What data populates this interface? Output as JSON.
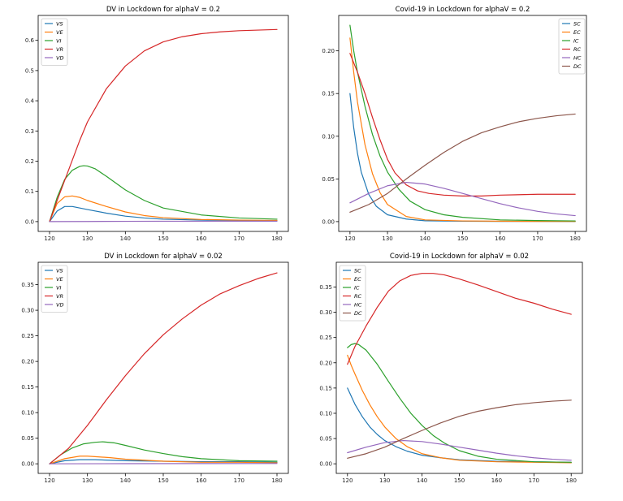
{
  "chart_data": [
    {
      "type": "line",
      "title": "DV in Lockdown for alphaV = 0.2",
      "xlabel": "",
      "ylabel": "",
      "xlim": [
        120,
        180
      ],
      "ylim": [
        0,
        0.65
      ],
      "xticks": [
        120,
        130,
        140,
        150,
        160,
        170,
        180
      ],
      "yticks": [
        0.0,
        0.1,
        0.2,
        0.3,
        0.4,
        0.5,
        0.6
      ],
      "yticklabels": [
        "0.0",
        "0.1",
        "0.2",
        "0.3",
        "0.4",
        "0.5",
        "0.6"
      ],
      "legend_position": "top-left",
      "series": [
        {
          "name": "VS",
          "color": "#1f77b4",
          "x": [
            120,
            122,
            124,
            126,
            128,
            130,
            135,
            140,
            145,
            150,
            160,
            170,
            180
          ],
          "values": [
            0.0,
            0.035,
            0.05,
            0.05,
            0.045,
            0.04,
            0.028,
            0.018,
            0.012,
            0.008,
            0.005,
            0.004,
            0.003
          ]
        },
        {
          "name": "VE",
          "color": "#ff7f0e",
          "x": [
            120,
            122,
            124,
            126,
            128,
            130,
            135,
            140,
            145,
            150,
            160,
            170,
            180
          ],
          "values": [
            0.0,
            0.06,
            0.082,
            0.085,
            0.08,
            0.07,
            0.05,
            0.032,
            0.02,
            0.013,
            0.007,
            0.005,
            0.004
          ]
        },
        {
          "name": "VI",
          "color": "#2ca02c",
          "x": [
            120,
            122,
            124,
            126,
            128,
            129,
            130,
            132,
            135,
            140,
            145,
            150,
            160,
            170,
            180
          ],
          "values": [
            0.0,
            0.08,
            0.14,
            0.17,
            0.183,
            0.185,
            0.184,
            0.175,
            0.15,
            0.105,
            0.07,
            0.045,
            0.022,
            0.012,
            0.008
          ]
        },
        {
          "name": "VR",
          "color": "#d62728",
          "x": [
            120,
            122,
            125,
            128,
            130,
            135,
            140,
            145,
            150,
            155,
            160,
            165,
            170,
            175,
            180
          ],
          "values": [
            0.0,
            0.07,
            0.17,
            0.27,
            0.33,
            0.44,
            0.515,
            0.565,
            0.595,
            0.612,
            0.622,
            0.628,
            0.632,
            0.634,
            0.636
          ]
        },
        {
          "name": "VD",
          "color": "#9467bd",
          "x": [
            120,
            130,
            140,
            150,
            160,
            170,
            180
          ],
          "values": [
            0.0,
            0.0005,
            0.001,
            0.0012,
            0.0013,
            0.0014,
            0.0014
          ]
        }
      ]
    },
    {
      "type": "line",
      "title": "Covid-19 in Lockdown for alphaV = 0.2",
      "xlabel": "",
      "ylabel": "",
      "xlim": [
        120,
        180
      ],
      "ylim": [
        0,
        0.23
      ],
      "xticks": [
        120,
        130,
        140,
        150,
        160,
        170,
        180
      ],
      "yticks": [
        0.0,
        0.05,
        0.1,
        0.15,
        0.2
      ],
      "yticklabels": [
        "0.00",
        "0.05",
        "0.10",
        "0.15",
        "0.20"
      ],
      "legend_position": "top-right",
      "series": [
        {
          "name": "SC",
          "color": "#1f77b4",
          "x": [
            120,
            121,
            122,
            123,
            125,
            127,
            130,
            135,
            140,
            150,
            160,
            170,
            180
          ],
          "values": [
            0.15,
            0.11,
            0.08,
            0.058,
            0.032,
            0.018,
            0.008,
            0.003,
            0.001,
            0.0005,
            0.0003,
            0.0002,
            0.0001
          ]
        },
        {
          "name": "EC",
          "color": "#ff7f0e",
          "x": [
            120,
            121,
            122,
            124,
            126,
            128,
            130,
            135,
            140,
            150,
            160,
            170,
            180
          ],
          "values": [
            0.215,
            0.175,
            0.14,
            0.09,
            0.056,
            0.034,
            0.02,
            0.006,
            0.002,
            0.0008,
            0.0005,
            0.0003,
            0.0002
          ]
        },
        {
          "name": "IC",
          "color": "#2ca02c",
          "x": [
            120,
            121,
            122,
            124,
            126,
            128,
            130,
            133,
            136,
            140,
            145,
            150,
            160,
            170,
            180
          ],
          "values": [
            0.23,
            0.2,
            0.175,
            0.135,
            0.102,
            0.077,
            0.058,
            0.038,
            0.024,
            0.014,
            0.008,
            0.005,
            0.002,
            0.0012,
            0.0008
          ]
        },
        {
          "name": "RC",
          "color": "#d62728",
          "x": [
            120,
            122,
            124,
            126,
            128,
            130,
            132,
            135,
            138,
            141,
            145,
            150,
            155,
            160,
            170,
            180
          ],
          "values": [
            0.197,
            0.175,
            0.15,
            0.122,
            0.096,
            0.073,
            0.057,
            0.043,
            0.036,
            0.033,
            0.031,
            0.03,
            0.03,
            0.031,
            0.032,
            0.032
          ]
        },
        {
          "name": "HC",
          "color": "#9467bd",
          "x": [
            120,
            125,
            130,
            135,
            140,
            145,
            150,
            155,
            160,
            165,
            170,
            175,
            180
          ],
          "values": [
            0.022,
            0.033,
            0.042,
            0.046,
            0.044,
            0.039,
            0.033,
            0.027,
            0.021,
            0.016,
            0.012,
            0.009,
            0.007
          ]
        },
        {
          "name": "DC",
          "color": "#8c564b",
          "x": [
            120,
            125,
            130,
            135,
            140,
            145,
            150,
            155,
            160,
            165,
            170,
            175,
            180
          ],
          "values": [
            0.011,
            0.02,
            0.033,
            0.05,
            0.066,
            0.081,
            0.094,
            0.104,
            0.111,
            0.117,
            0.121,
            0.124,
            0.126
          ]
        }
      ]
    },
    {
      "type": "line",
      "title": "DV in Lockdown for alphaV = 0.02",
      "xlabel": "",
      "ylabel": "",
      "xlim": [
        120,
        180
      ],
      "ylim": [
        0,
        0.375
      ],
      "xticks": [
        120,
        130,
        140,
        150,
        160,
        170,
        180
      ],
      "yticks": [
        0.0,
        0.05,
        0.1,
        0.15,
        0.2,
        0.25,
        0.3,
        0.35
      ],
      "yticklabels": [
        "0.00",
        "0.05",
        "0.10",
        "0.15",
        "0.20",
        "0.25",
        "0.30",
        "0.35"
      ],
      "legend_position": "top-left",
      "series": [
        {
          "name": "VS",
          "color": "#1f77b4",
          "x": [
            120,
            124,
            128,
            132,
            136,
            140,
            150,
            160,
            170,
            180
          ],
          "values": [
            0.0,
            0.006,
            0.008,
            0.008,
            0.007,
            0.006,
            0.005,
            0.004,
            0.004,
            0.003
          ]
        },
        {
          "name": "VE",
          "color": "#ff7f0e",
          "x": [
            120,
            124,
            128,
            130,
            132,
            136,
            140,
            145,
            150,
            160,
            170,
            180
          ],
          "values": [
            0.0,
            0.01,
            0.015,
            0.015,
            0.014,
            0.012,
            0.009,
            0.007,
            0.005,
            0.003,
            0.003,
            0.002
          ]
        },
        {
          "name": "VI",
          "color": "#2ca02c",
          "x": [
            120,
            123,
            126,
            129,
            132,
            134,
            137,
            140,
            145,
            150,
            155,
            160,
            170,
            180
          ],
          "values": [
            0.0,
            0.018,
            0.031,
            0.039,
            0.042,
            0.043,
            0.041,
            0.036,
            0.027,
            0.02,
            0.014,
            0.01,
            0.006,
            0.005
          ]
        },
        {
          "name": "VR",
          "color": "#d62728",
          "x": [
            120,
            125,
            130,
            135,
            140,
            145,
            150,
            155,
            160,
            165,
            170,
            175,
            180
          ],
          "values": [
            0.0,
            0.03,
            0.075,
            0.125,
            0.172,
            0.215,
            0.252,
            0.283,
            0.31,
            0.332,
            0.348,
            0.362,
            0.373
          ]
        },
        {
          "name": "VD",
          "color": "#9467bd",
          "x": [
            120,
            140,
            160,
            180
          ],
          "values": [
            0.0,
            0.0003,
            0.0005,
            0.0006
          ]
        }
      ]
    },
    {
      "type": "line",
      "title": "Covid-19 in Lockdown for alphaV = 0.02",
      "xlabel": "",
      "ylabel": "",
      "xlim": [
        120,
        180
      ],
      "ylim": [
        0,
        0.38
      ],
      "xticks": [
        120,
        130,
        140,
        150,
        160,
        170,
        180
      ],
      "yticks": [
        0.0,
        0.05,
        0.1,
        0.15,
        0.2,
        0.25,
        0.3,
        0.35
      ],
      "yticklabels": [
        "0.00",
        "0.05",
        "0.10",
        "0.15",
        "0.20",
        "0.25",
        "0.30",
        "0.35"
      ],
      "legend_position": "top-left",
      "series": [
        {
          "name": "SC",
          "color": "#1f77b4",
          "x": [
            120,
            122,
            124,
            126,
            128,
            130,
            133,
            136,
            140,
            145,
            150,
            160,
            170,
            180
          ],
          "values": [
            0.15,
            0.118,
            0.093,
            0.073,
            0.058,
            0.046,
            0.034,
            0.025,
            0.017,
            0.012,
            0.008,
            0.005,
            0.004,
            0.003
          ]
        },
        {
          "name": "EC",
          "color": "#ff7f0e",
          "x": [
            120,
            121,
            122,
            124,
            126,
            128,
            130,
            133,
            136,
            140,
            145,
            150,
            160,
            170,
            180
          ],
          "values": [
            0.215,
            0.195,
            0.178,
            0.145,
            0.117,
            0.093,
            0.073,
            0.05,
            0.034,
            0.02,
            0.012,
            0.007,
            0.004,
            0.003,
            0.002
          ]
        },
        {
          "name": "IC",
          "color": "#2ca02c",
          "x": [
            120,
            121,
            122,
            123,
            125,
            128,
            131,
            134,
            137,
            140,
            143,
            146,
            150,
            155,
            160,
            170,
            180
          ],
          "values": [
            0.23,
            0.236,
            0.238,
            0.236,
            0.225,
            0.197,
            0.163,
            0.13,
            0.1,
            0.076,
            0.056,
            0.041,
            0.026,
            0.015,
            0.009,
            0.004,
            0.003
          ]
        },
        {
          "name": "RC",
          "color": "#d62728",
          "x": [
            120,
            122,
            125,
            128,
            131,
            134,
            137,
            140,
            143,
            146,
            150,
            155,
            160,
            165,
            170,
            175,
            180
          ],
          "values": [
            0.197,
            0.232,
            0.273,
            0.31,
            0.342,
            0.362,
            0.373,
            0.377,
            0.377,
            0.374,
            0.366,
            0.354,
            0.341,
            0.328,
            0.318,
            0.306,
            0.296
          ]
        },
        {
          "name": "HC",
          "color": "#9467bd",
          "x": [
            120,
            125,
            130,
            135,
            140,
            145,
            150,
            155,
            160,
            165,
            170,
            175,
            180
          ],
          "values": [
            0.022,
            0.033,
            0.042,
            0.046,
            0.044,
            0.039,
            0.033,
            0.027,
            0.021,
            0.016,
            0.012,
            0.009,
            0.007
          ]
        },
        {
          "name": "DC",
          "color": "#8c564b",
          "x": [
            120,
            125,
            130,
            135,
            140,
            145,
            150,
            155,
            160,
            165,
            170,
            175,
            180
          ],
          "values": [
            0.011,
            0.02,
            0.033,
            0.05,
            0.066,
            0.081,
            0.094,
            0.104,
            0.111,
            0.117,
            0.121,
            0.124,
            0.126
          ]
        }
      ]
    }
  ]
}
